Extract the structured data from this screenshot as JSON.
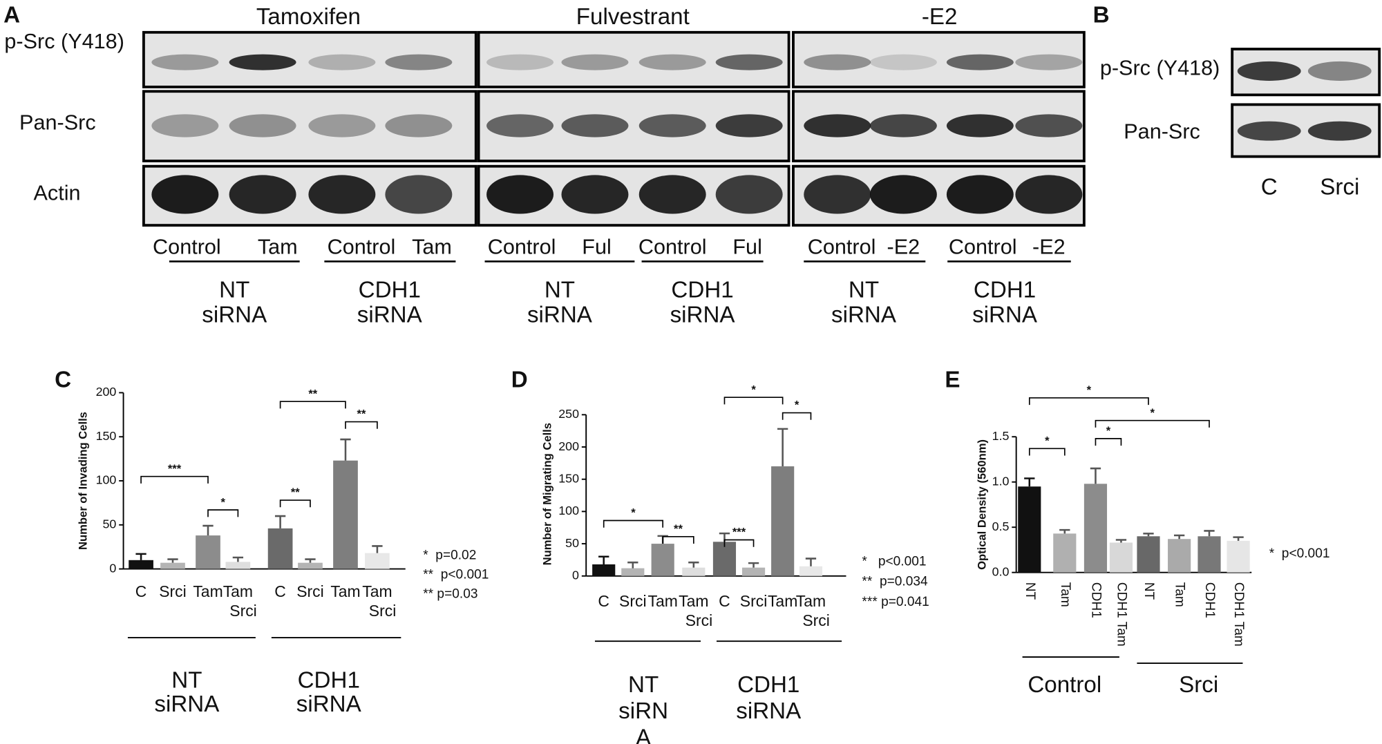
{
  "panel_labels": {
    "a": "A",
    "b": "B",
    "c": "C",
    "d": "D",
    "e": "E"
  },
  "blot_a": {
    "rows": [
      "p-Src (Y418)",
      "Pan-Src",
      "Actin"
    ],
    "treatments": [
      {
        "title": "Tamoxifen",
        "lanes": [
          "Control",
          "Tam",
          "Control",
          "Tam"
        ],
        "groups": [
          [
            "NT",
            "siRNA"
          ],
          [
            "CDH1",
            "siRNA"
          ]
        ]
      },
      {
        "title": "Fulvestrant",
        "lanes": [
          "Control",
          "Ful",
          "Control",
          "Ful"
        ],
        "groups": [
          [
            "NT",
            "siRNA"
          ],
          [
            "CDH1",
            "siRNA"
          ]
        ]
      },
      {
        "title": "-E2",
        "lanes": [
          "Control",
          "-E2",
          "Control",
          "-E2"
        ],
        "groups": [
          [
            "NT",
            "siRNA"
          ],
          [
            "CDH1",
            "siRNA"
          ]
        ]
      }
    ]
  },
  "blot_b": {
    "rows": [
      "p-Src (Y418)",
      "Pan-Src"
    ],
    "lanes": [
      "C",
      "Srci"
    ]
  },
  "chart_data": [
    {
      "type": "bar",
      "y_label": "Number of Invading Cells",
      "categories": [
        [
          "C"
        ],
        [
          "Srci"
        ],
        [
          "Tam"
        ],
        [
          "Tam",
          "Srci"
        ],
        [
          "C"
        ],
        [
          "Srci"
        ],
        [
          "Tam"
        ],
        [
          "Tam",
          "Srci"
        ]
      ],
      "values": [
        10,
        7,
        38,
        8,
        46,
        7,
        123,
        18
      ],
      "errors": [
        7,
        4,
        11,
        5,
        14,
        4,
        24,
        8
      ],
      "colors": [
        "#111111",
        "#b4b4b4",
        "#8c8c8c",
        "#dedede",
        "#6a6a6a",
        "#b4b4b4",
        "#7e7e7e",
        "#e8e8e8"
      ],
      "ylim": [
        0,
        200
      ],
      "yticks": [
        0,
        50,
        100,
        150,
        200
      ],
      "groups": [
        [
          "NT",
          "siRNA"
        ],
        [
          "CDH1",
          "siRNA"
        ]
      ],
      "brackets": [
        {
          "label": "***",
          "from": 0,
          "to": 2,
          "y": 105
        },
        {
          "label": "*",
          "from": 2,
          "to": 3,
          "y": 67
        },
        {
          "label": "**",
          "from": 4,
          "to": 5,
          "y": 78
        },
        {
          "label": "**",
          "from": 4,
          "to": 6,
          "y": 190
        },
        {
          "label": "**",
          "from": 6,
          "to": 7,
          "y": 167
        }
      ],
      "notes": [
        "*  p=0.02",
        "**  p<0.001",
        "** p=0.03"
      ]
    },
    {
      "type": "bar",
      "y_label": "Number of Migrating Cells",
      "categories": [
        [
          "C"
        ],
        [
          "Srci"
        ],
        [
          "Tam"
        ],
        [
          "Tam",
          "Srci"
        ],
        [
          "C"
        ],
        [
          "Srci"
        ],
        [
          "Tam"
        ],
        [
          "Tam",
          "Srci"
        ]
      ],
      "values": [
        18,
        12,
        50,
        13,
        53,
        13,
        170,
        15
      ],
      "errors": [
        12,
        9,
        12,
        8,
        13,
        7,
        58,
        12
      ],
      "colors": [
        "#111111",
        "#b4b4b4",
        "#8c8c8c",
        "#dedede",
        "#6a6a6a",
        "#b4b4b4",
        "#7e7e7e",
        "#e8e8e8"
      ],
      "ylim": [
        0,
        250
      ],
      "yticks": [
        0,
        50,
        100,
        150,
        200,
        250
      ],
      "groups": [
        [
          "NT",
          "siRN",
          "A"
        ],
        [
          "CDH1",
          "siRNA"
        ]
      ],
      "brackets": [
        {
          "label": "*",
          "from": 0,
          "to": 2,
          "y": 86
        },
        {
          "label": "**",
          "from": 2,
          "to": 3,
          "y": 61
        },
        {
          "label": "***",
          "from": 4,
          "to": 5,
          "y": 56
        },
        {
          "label": "*",
          "from": 4,
          "to": 6,
          "y": 277
        },
        {
          "label": "*",
          "from": 6,
          "to": 7,
          "y": 253
        }
      ],
      "notes": [
        "*   p<0.001",
        "**  p=0.034",
        "*** p=0.041"
      ]
    },
    {
      "type": "bar",
      "y_label": "Optical Density (560nm)",
      "categories": [
        [
          "NT"
        ],
        [
          "Tam"
        ],
        [
          "CDH1"
        ],
        [
          "CDH1 Tam"
        ],
        [
          "NT"
        ],
        [
          "Tam"
        ],
        [
          "CDH1"
        ],
        [
          "CDH1 Tam"
        ]
      ],
      "values": [
        0.95,
        0.43,
        0.98,
        0.33,
        0.4,
        0.37,
        0.4,
        0.35
      ],
      "errors": [
        0.09,
        0.04,
        0.17,
        0.03,
        0.03,
        0.04,
        0.06,
        0.04
      ],
      "colors": [
        "#111111",
        "#b0b0b0",
        "#8c8c8c",
        "#d8d8d8",
        "#686868",
        "#aaaaaa",
        "#787878",
        "#e6e6e6"
      ],
      "ylim": [
        0,
        1.5
      ],
      "yticks": [
        {
          "value": 0,
          "label": "0.0"
        },
        0.5,
        {
          "value": 1,
          "label": "1.0"
        },
        1.5
      ],
      "groups": [
        [
          "Control"
        ],
        [
          "Srci"
        ]
      ],
      "brackets": [
        {
          "label": "*",
          "from": 0,
          "to": 1,
          "y": 1.37
        },
        {
          "label": "*",
          "from": 2,
          "to": 3,
          "y": 1.48
        },
        {
          "label": "*",
          "from": 0,
          "to": 4,
          "y": 1.93
        },
        {
          "label": "*",
          "from": 2,
          "to": 6,
          "y": 1.68
        }
      ],
      "notes": [
        "*  p<0.001"
      ]
    }
  ]
}
